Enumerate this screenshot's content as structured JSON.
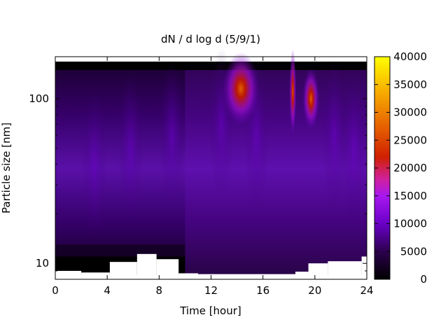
{
  "chart_data": {
    "type": "heatmap",
    "title": "dN / d log d (5/9/1)",
    "xlabel": "Time [hour]",
    "ylabel": "Particle size [nm]",
    "x_ticks": [
      0,
      4,
      8,
      12,
      16,
      20,
      24
    ],
    "xlim": [
      0,
      24
    ],
    "y_scale": "log",
    "y_ticks": [
      10,
      100
    ],
    "ylim": [
      8,
      180
    ],
    "colorbar": {
      "min": 0,
      "max": 40000,
      "ticks": [
        0,
        5000,
        10000,
        15000,
        20000,
        25000,
        30000,
        35000,
        40000
      ],
      "palette": [
        "#000000",
        "#2a004a",
        "#6a00c8",
        "#a818f0",
        "#d0209c",
        "#d02000",
        "#e86800",
        "#f8b000",
        "#ffff00"
      ]
    },
    "features": [
      {
        "time": 14.3,
        "size": 115,
        "value": 24000
      },
      {
        "time": 18.3,
        "size": 110,
        "value": 26000
      },
      {
        "time": 19.7,
        "size": 100,
        "value": 19000
      },
      {
        "time": 5.0,
        "size": 40,
        "value": 6000
      }
    ],
    "grid": false
  }
}
